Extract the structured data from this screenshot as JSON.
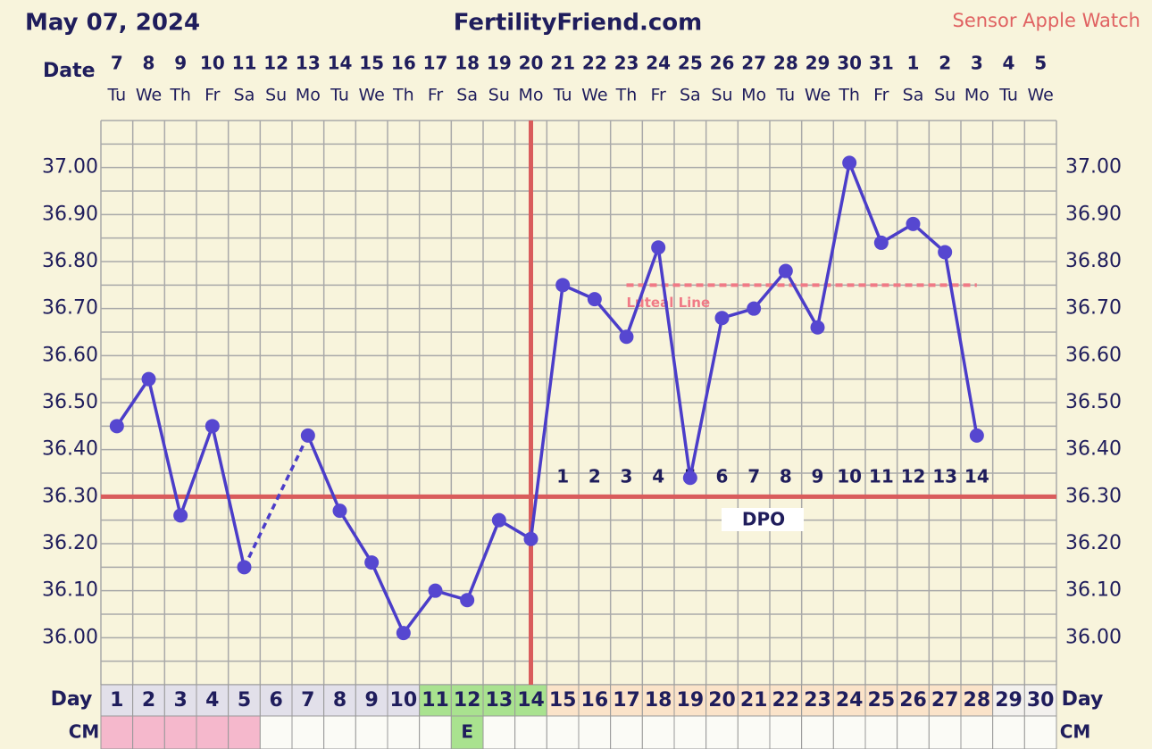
{
  "header": {
    "date": "May 07, 2024",
    "site": "FertilityFriend.com",
    "sensor": "Sensor Apple Watch"
  },
  "chart_data": {
    "type": "line",
    "date_label": "Date",
    "dates": [
      7,
      8,
      9,
      10,
      11,
      12,
      13,
      14,
      15,
      16,
      17,
      18,
      19,
      20,
      21,
      22,
      23,
      24,
      25,
      26,
      27,
      28,
      29,
      30,
      31,
      1,
      2,
      3,
      4,
      5
    ],
    "weekdays": [
      "Tu",
      "We",
      "Th",
      "Fr",
      "Sa",
      "Su",
      "Mo",
      "Tu",
      "We",
      "Th",
      "Fr",
      "Sa",
      "Su",
      "Mo",
      "Tu",
      "We",
      "Th",
      "Fr",
      "Sa",
      "Su",
      "Mo",
      "Tu",
      "We",
      "Th",
      "Fr",
      "Sa",
      "Su",
      "Mo",
      "Tu",
      "We"
    ],
    "day_label": "Day",
    "categories": [
      1,
      2,
      3,
      4,
      5,
      6,
      7,
      8,
      9,
      10,
      11,
      12,
      13,
      14,
      15,
      16,
      17,
      18,
      19,
      20,
      21,
      22,
      23,
      24,
      25,
      26,
      27,
      28,
      29,
      30
    ],
    "day_colors": [
      "#e2e0ea",
      "#e2e0ea",
      "#e2e0ea",
      "#e2e0ea",
      "#e2e0ea",
      "#e2e0ea",
      "#e2e0ea",
      "#e2e0ea",
      "#e2e0ea",
      "#e2e0ea",
      "#a9e28f",
      "#a9e28f",
      "#a9e28f",
      "#a9e28f",
      "#fbe3c9",
      "#fbe3c9",
      "#fbe3c9",
      "#fbe3c9",
      "#fbe3c9",
      "#fbe3c9",
      "#fbe3c9",
      "#fbe3c9",
      "#fbe3c9",
      "#fbe3c9",
      "#fbe3c9",
      "#fbe3c9",
      "#fbe3c9",
      "#fbe3c9",
      "#f3f1ee",
      "#f3f1ee"
    ],
    "values": [
      36.45,
      36.55,
      36.26,
      36.45,
      36.15,
      null,
      36.43,
      36.27,
      36.16,
      36.01,
      36.1,
      36.08,
      36.25,
      36.21,
      36.75,
      36.72,
      36.64,
      36.83,
      36.34,
      36.68,
      36.7,
      36.78,
      36.66,
      37.01,
      36.84,
      36.88,
      36.82,
      36.43,
      null,
      null
    ],
    "color": "#4b3dc9",
    "ylim": [
      35.9,
      37.1
    ],
    "yticks": [
      {
        "value": 36,
        "label": "36.00"
      },
      {
        "value": 36.1,
        "label": "36.10"
      },
      {
        "value": 36.2,
        "label": "36.20"
      },
      {
        "value": 36.3,
        "label": "36.30"
      },
      {
        "value": 36.4,
        "label": "36.40"
      },
      {
        "value": 36.5,
        "label": "36.50"
      },
      {
        "value": 36.6,
        "label": "36.60"
      },
      {
        "value": 36.7,
        "label": "36.70"
      },
      {
        "value": 36.8,
        "label": "36.80"
      },
      {
        "value": 36.9,
        "label": "36.90"
      },
      {
        "value": 37,
        "label": "37.00"
      }
    ],
    "grid": true,
    "coverline": 36.3,
    "ovulation_day": 14,
    "line_color": "#d95c5c",
    "luteal_line": {
      "label": "Luteal Line",
      "value": 36.75,
      "from_day": 17,
      "to_day": 28,
      "color": "#f07a86"
    },
    "dpo_label": "DPO",
    "dpo": [
      null,
      null,
      null,
      null,
      null,
      null,
      null,
      null,
      null,
      null,
      null,
      null,
      null,
      null,
      1,
      2,
      3,
      4,
      5,
      6,
      7,
      8,
      9,
      10,
      11,
      12,
      13,
      14,
      null,
      null
    ],
    "cm_label": "CM",
    "cm": [
      null,
      null,
      null,
      null,
      null,
      null,
      null,
      null,
      null,
      null,
      null,
      "E",
      null,
      null,
      null,
      null,
      null,
      null,
      null,
      null,
      null,
      null,
      null,
      null,
      null,
      null,
      null,
      null,
      null,
      null
    ],
    "cm_colors": [
      "#f5b8cc",
      "#f5b8cc",
      "#f5b8cc",
      "#f5b8cc",
      "#f5b8cc",
      "#fbfbf6",
      "#fbfbf6",
      "#fbfbf6",
      "#fbfbf6",
      "#fbfbf6",
      "#fbfbf6",
      "#a9e28f",
      "#fbfbf6",
      "#fbfbf6",
      "#fbfbf6",
      "#fbfbf6",
      "#fbfbf6",
      "#fbfbf6",
      "#fbfbf6",
      "#fbfbf6",
      "#fbfbf6",
      "#fbfbf6",
      "#fbfbf6",
      "#fbfbf6",
      "#fbfbf6",
      "#fbfbf6",
      "#fbfbf6",
      "#fbfbf6",
      "#fbfbf6",
      "#fbfbf6"
    ]
  }
}
